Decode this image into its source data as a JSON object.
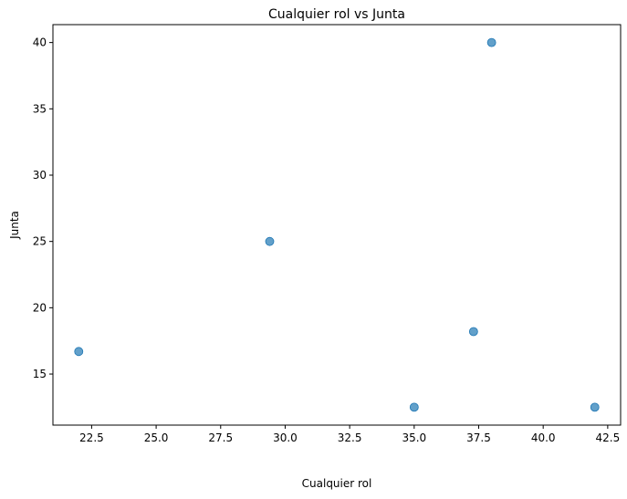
{
  "chart_data": {
    "type": "scatter",
    "title": "Cualquier rol vs Junta",
    "xlabel": "Cualquier rol",
    "ylabel": "Junta",
    "xlim": [
      21.0,
      43.0
    ],
    "ylim": [
      11.15,
      41.35
    ],
    "xticks": [
      22.5,
      25.0,
      27.5,
      30.0,
      32.5,
      35.0,
      37.5,
      40.0,
      42.5
    ],
    "xtick_labels": [
      "22.5",
      "25.0",
      "27.5",
      "30.0",
      "32.5",
      "35.0",
      "37.5",
      "40.0",
      "42.5"
    ],
    "yticks": [
      15,
      20,
      25,
      30,
      35,
      40
    ],
    "ytick_labels": [
      "15",
      "20",
      "25",
      "30",
      "35",
      "40"
    ],
    "grid": false,
    "marker_color": "#1f77b4",
    "marker_opacity": 0.7,
    "points": [
      {
        "x": 22.0,
        "y": 16.7
      },
      {
        "x": 29.4,
        "y": 25.0
      },
      {
        "x": 35.0,
        "y": 12.5
      },
      {
        "x": 37.3,
        "y": 18.2
      },
      {
        "x": 38.0,
        "y": 40.0
      },
      {
        "x": 42.0,
        "y": 12.5
      }
    ]
  }
}
